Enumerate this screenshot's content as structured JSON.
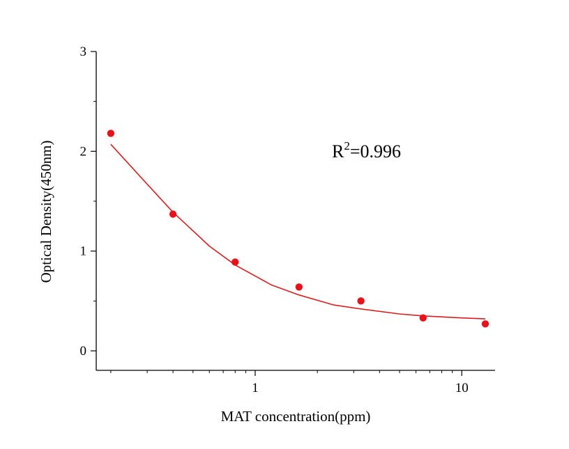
{
  "chart_data": {
    "type": "scatter",
    "xscale": "log",
    "xlabel": "MAT  concentration(ppm)",
    "ylabel": "Optical Density(450nm)",
    "ylim": [
      0,
      3
    ],
    "xlim": [
      0.17,
      14.5
    ],
    "x_ticks": [
      {
        "value": 1,
        "label": "1"
      },
      {
        "value": 10,
        "label": "10"
      }
    ],
    "y_ticks": [
      {
        "value": 0,
        "label": "0"
      },
      {
        "value": 1,
        "label": "1"
      },
      {
        "value": 2,
        "label": "2"
      },
      {
        "value": 3,
        "label": "3"
      }
    ],
    "series": [
      {
        "type": "scatter",
        "x": [
          0.2,
          0.4,
          0.8,
          1.63,
          3.25,
          6.5,
          13
        ],
        "y": [
          2.18,
          1.37,
          0.89,
          0.64,
          0.5,
          0.33,
          0.27
        ]
      },
      {
        "type": "line",
        "x": [
          0.2,
          0.3,
          0.4,
          0.6,
          0.8,
          1.2,
          1.63,
          2.4,
          3.25,
          5,
          6.5,
          10,
          13
        ],
        "y": [
          2.07,
          1.67,
          1.39,
          1.05,
          0.86,
          0.66,
          0.56,
          0.46,
          0.42,
          0.37,
          0.35,
          0.33,
          0.32
        ]
      }
    ],
    "annotation": {
      "base": "R",
      "sup": "2",
      "rest": "=0.996"
    },
    "colors": {
      "points": "#e8121a",
      "fit": "#d81e1e",
      "axis": "#000000"
    },
    "grid": false
  }
}
